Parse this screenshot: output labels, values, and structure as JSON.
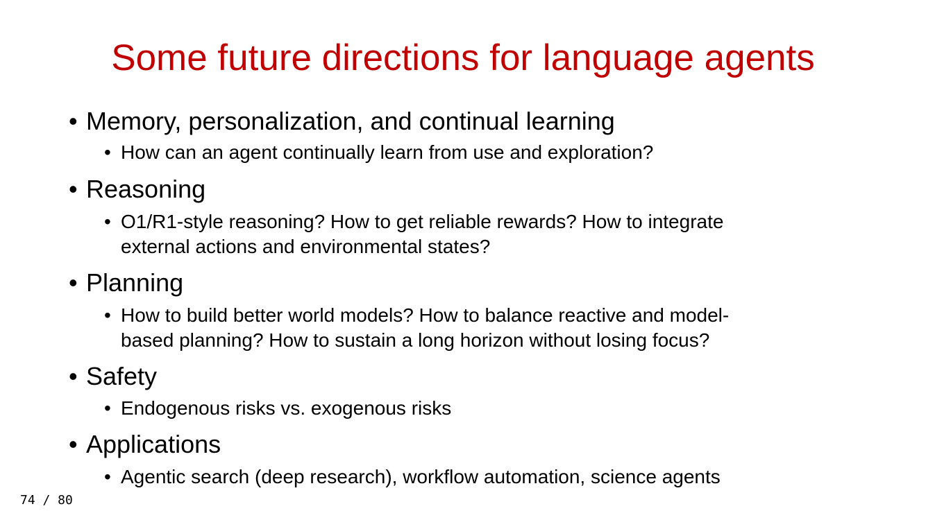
{
  "slide": {
    "title": "Some future directions for language agents",
    "title_color": "#c00000",
    "sections": [
      {
        "heading": "Memory, personalization, and continual learning",
        "sub": "How can an agent continually learn from use and exploration?"
      },
      {
        "heading": "Reasoning",
        "sub_line1": "O1/R1-style reasoning? How to get reliable rewards? How to integrate",
        "sub_line2": "external actions and environmental states?"
      },
      {
        "heading": "Planning",
        "sub_line1": "How to build better world models? How to balance reactive and model-",
        "sub_line2": "based planning? How to sustain a long horizon without losing focus?"
      },
      {
        "heading": "Safety",
        "sub": "Endogenous risks vs. exogenous risks"
      },
      {
        "heading": "Applications",
        "sub": "Agentic search (deep research), workflow automation, science agents"
      }
    ],
    "bullet_glyph": "•",
    "page_counter": "74 / 80"
  }
}
